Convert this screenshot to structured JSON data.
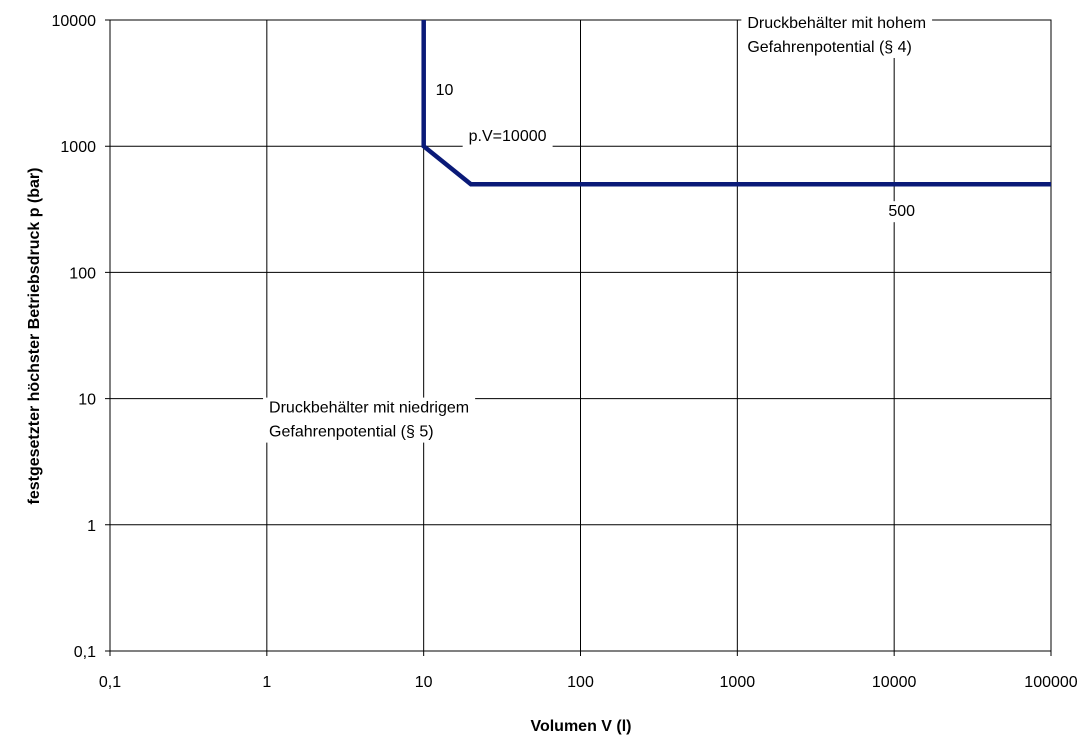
{
  "chart_data": {
    "type": "line",
    "x_scale": "log",
    "y_scale": "log",
    "xlim": [
      0.1,
      100000
    ],
    "ylim": [
      0.1,
      10000
    ],
    "grid": true,
    "xlabel": "Volumen V (l)",
    "ylabel": "festgesetzter höchster Betriebsdruck p (bar)",
    "x_ticks": [
      {
        "value": 0.1,
        "label": "0,1"
      },
      {
        "value": 1,
        "label": "1"
      },
      {
        "value": 10,
        "label": "10"
      },
      {
        "value": 100,
        "label": "100"
      },
      {
        "value": 1000,
        "label": "1000"
      },
      {
        "value": 10000,
        "label": "10000"
      },
      {
        "value": 100000,
        "label": "100000"
      }
    ],
    "y_ticks": [
      {
        "value": 0.1,
        "label": "0,1"
      },
      {
        "value": 1,
        "label": "1"
      },
      {
        "value": 10,
        "label": "10"
      },
      {
        "value": 100,
        "label": "100"
      },
      {
        "value": 1000,
        "label": "1000"
      },
      {
        "value": 10000,
        "label": "10000"
      }
    ],
    "series": [
      {
        "color": "#0a1a78",
        "points": [
          {
            "x": 10,
            "y": 10000
          },
          {
            "x": 10,
            "y": 1000
          },
          {
            "x": 20,
            "y": 500
          },
          {
            "x": 100000,
            "y": 500
          }
        ]
      }
    ],
    "annotations": [
      {
        "lines": [
          "10"
        ],
        "x": 10,
        "y": 10000
      },
      {
        "lines": [
          "p.V=10000"
        ],
        "x": 10,
        "y": 1000
      },
      {
        "lines": [
          "500"
        ],
        "x": 20000,
        "y": 500
      },
      {
        "lines": [
          "Druckbehälter mit hohem",
          "Gefahrenpotential (§ 4)"
        ],
        "x": 1000,
        "y": 5000
      },
      {
        "lines": [
          "Druckbehälter mit niedrigem",
          "Gefahrenpotential (§ 5)"
        ],
        "x": 2,
        "y": 10
      }
    ]
  }
}
